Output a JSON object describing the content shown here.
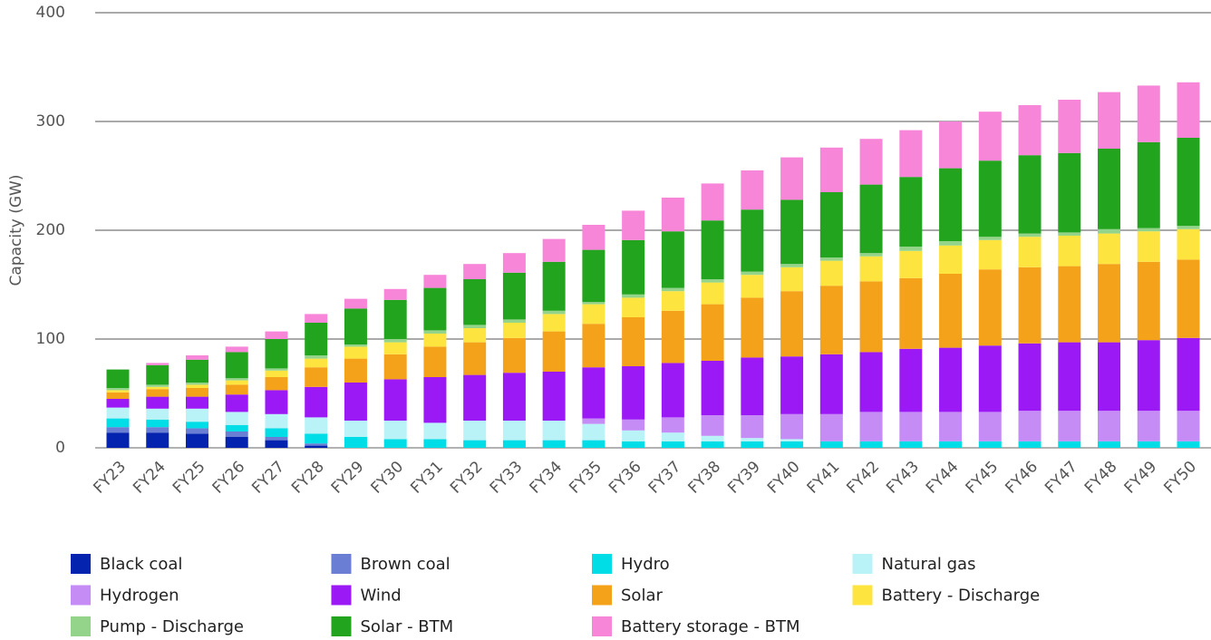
{
  "chart_data": {
    "type": "stacked_bar",
    "y_label": "Capacity (GW)",
    "categories": [
      "FY23",
      "FY24",
      "FY25",
      "FY26",
      "FY27",
      "FY28",
      "FY29",
      "FY30",
      "FY31",
      "FY32",
      "FY33",
      "FY34",
      "FY35",
      "FY36",
      "FY37",
      "FY38",
      "FY39",
      "FY40",
      "FY41",
      "FY42",
      "FY43",
      "FY44",
      "FY45",
      "FY46",
      "FY47",
      "FY48",
      "FY49",
      "FY50"
    ],
    "ylim": [
      0,
      400
    ],
    "yticks": [
      0,
      100,
      200,
      300,
      400
    ],
    "grid": true,
    "series": [
      {
        "name": "Black coal",
        "color": "#0424b0",
        "values": [
          14,
          14,
          13,
          10,
          7,
          2,
          0,
          0,
          0,
          0,
          0,
          0,
          0,
          0,
          0,
          0,
          0,
          0,
          0,
          0,
          0,
          0,
          0,
          0,
          0,
          0,
          0,
          0
        ]
      },
      {
        "name": "Brown coal",
        "color": "#6a7fd4",
        "values": [
          5,
          5,
          5,
          5,
          3,
          2,
          0,
          0,
          0,
          0,
          0,
          0,
          0,
          0,
          0,
          0,
          0,
          0,
          0,
          0,
          0,
          0,
          0,
          0,
          0,
          0,
          0,
          0
        ]
      },
      {
        "name": "Hydro",
        "color": "#00dde6",
        "values": [
          8,
          7,
          6,
          6,
          8,
          9,
          10,
          8,
          8,
          7,
          7,
          7,
          7,
          6,
          6,
          6,
          6,
          6,
          6,
          6,
          6,
          6,
          6,
          6,
          6,
          6,
          6,
          6
        ]
      },
      {
        "name": "Natural gas",
        "color": "#b9f3f7",
        "values": [
          10,
          10,
          12,
          12,
          13,
          15,
          15,
          17,
          15,
          18,
          18,
          18,
          15,
          10,
          8,
          5,
          3,
          2,
          0,
          0,
          0,
          0,
          0,
          0,
          0,
          0,
          0,
          0
        ]
      },
      {
        "name": "Hydrogen",
        "color": "#c68cf5",
        "values": [
          0,
          0,
          0,
          0,
          0,
          0,
          0,
          0,
          0,
          0,
          0,
          0,
          5,
          10,
          14,
          19,
          21,
          23,
          25,
          27,
          27,
          27,
          27,
          28,
          28,
          28,
          28,
          28
        ]
      },
      {
        "name": "Wind",
        "color": "#9b19f5",
        "values": [
          8,
          11,
          11,
          16,
          22,
          28,
          35,
          38,
          42,
          42,
          44,
          45,
          47,
          49,
          50,
          50,
          53,
          53,
          55,
          55,
          58,
          59,
          61,
          62,
          63,
          63,
          65,
          67
        ]
      },
      {
        "name": "Solar",
        "color": "#f5a21b",
        "values": [
          6,
          7,
          8,
          9,
          12,
          18,
          22,
          23,
          28,
          30,
          32,
          37,
          40,
          45,
          48,
          52,
          55,
          60,
          63,
          65,
          65,
          68,
          70,
          70,
          70,
          72,
          72,
          72
        ]
      },
      {
        "name": "Battery - Discharge",
        "color": "#fde43f",
        "values": [
          2,
          2,
          3,
          4,
          6,
          8,
          11,
          11,
          12,
          13,
          14,
          16,
          18,
          18,
          18,
          20,
          21,
          22,
          23,
          23,
          25,
          26,
          27,
          28,
          28,
          28,
          28,
          28
        ]
      },
      {
        "name": "Pump - Discharge",
        "color": "#93d38a",
        "values": [
          2,
          2,
          2,
          2,
          2,
          3,
          2,
          3,
          3,
          3,
          3,
          3,
          2,
          3,
          3,
          3,
          3,
          3,
          3,
          3,
          4,
          4,
          3,
          3,
          3,
          4,
          3,
          3
        ]
      },
      {
        "name": "Solar - BTM",
        "color": "#22a41e",
        "values": [
          17,
          18,
          21,
          24,
          27,
          30,
          33,
          36,
          39,
          42,
          43,
          45,
          48,
          50,
          52,
          54,
          57,
          59,
          60,
          63,
          64,
          67,
          70,
          72,
          73,
          74,
          79,
          81
        ]
      },
      {
        "name": "Battery storage - BTM",
        "color": "#f786d8",
        "values": [
          0,
          2,
          4,
          5,
          7,
          8,
          9,
          10,
          12,
          14,
          18,
          21,
          23,
          27,
          31,
          34,
          36,
          39,
          41,
          42,
          43,
          43,
          45,
          46,
          49,
          52,
          52,
          51
        ]
      }
    ]
  }
}
